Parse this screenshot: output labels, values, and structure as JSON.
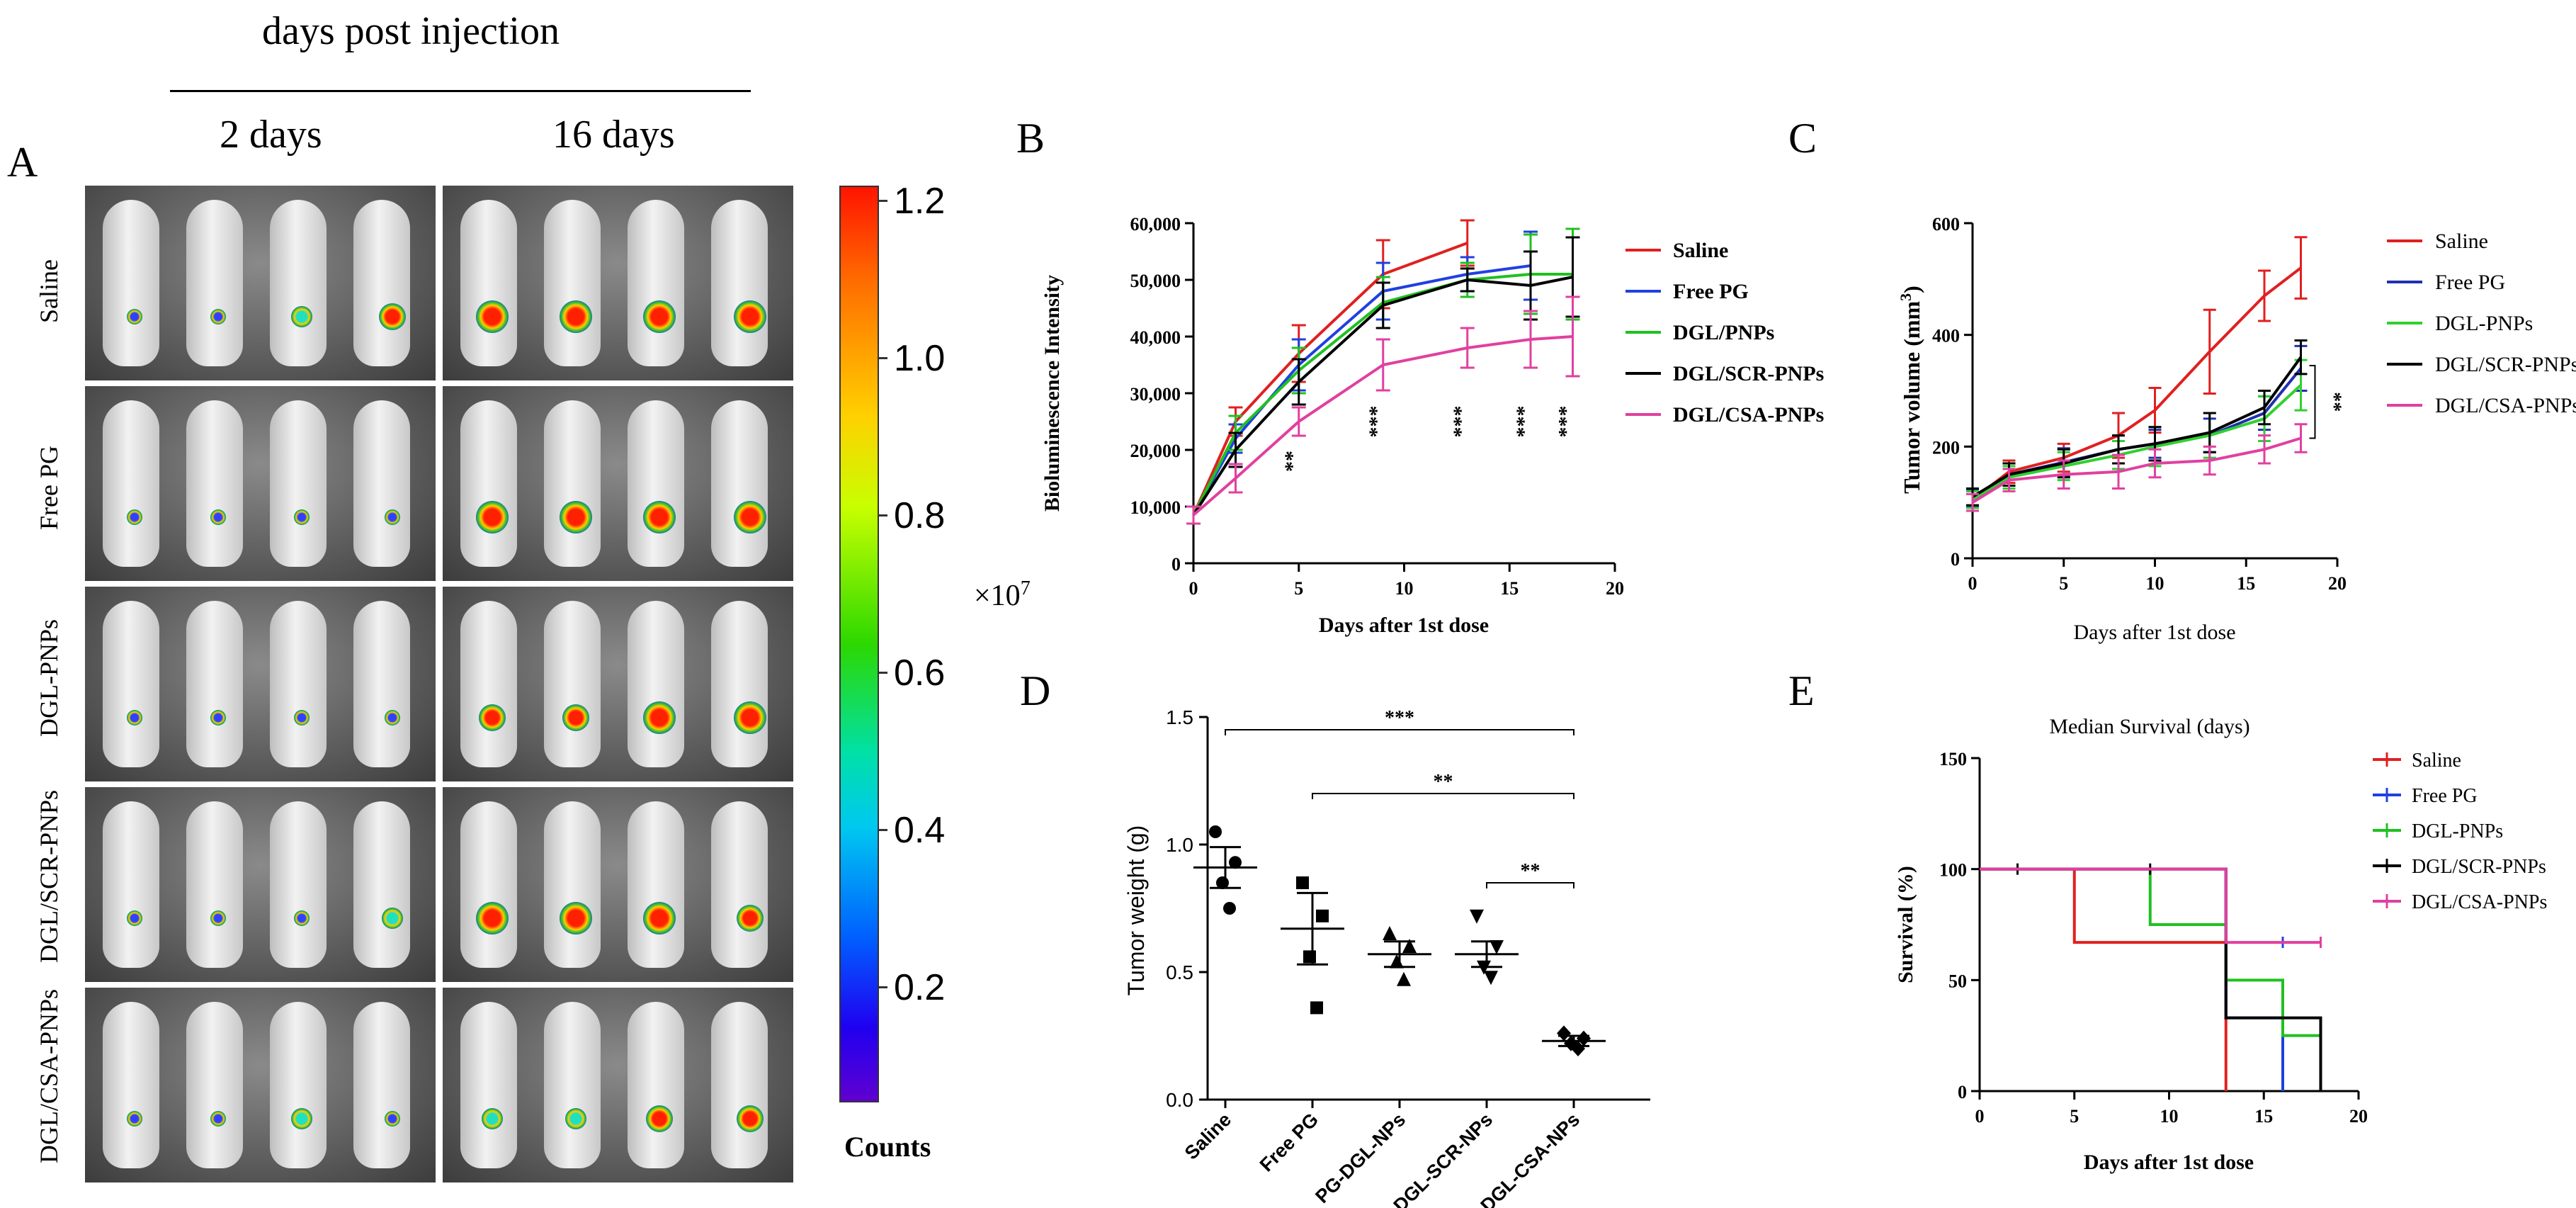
{
  "panel_a": {
    "header": "days post injection",
    "col_labels": [
      "2 days",
      "16 days"
    ],
    "panel_label": "A",
    "row_labels": [
      "Saline",
      "Free PG",
      "DGL-PNPs",
      "DGL/SCR-PNPs",
      "DGL/CSA-PNPs"
    ],
    "colorbar": {
      "ticks": [
        "1.2",
        "1.0",
        "0.8",
        "0.6",
        "0.4",
        "0.2"
      ],
      "multiplier": "×10",
      "multiplier_exp": "7",
      "label": "Counts"
    }
  },
  "chart_data": [
    {
      "id": "B",
      "type": "line",
      "panel_label": "B",
      "xlabel": "Days after 1st dose",
      "ylabel": "Bioluminescence Intensity",
      "xlim": [
        0,
        20
      ],
      "ylim": [
        0,
        60000
      ],
      "xticks": [
        "0",
        "5",
        "10",
        "15",
        "20"
      ],
      "yticks": [
        "0",
        "10,000",
        "20,000",
        "30,000",
        "40,000",
        "50,000",
        "60,000"
      ],
      "series": [
        {
          "name": "Saline",
          "color": "#e02020",
          "x": [
            0,
            2,
            5,
            9,
            13
          ],
          "y": [
            8500,
            25000,
            37000,
            51000,
            56500
          ],
          "err": [
            1500,
            2500,
            5000,
            6000,
            4000
          ]
        },
        {
          "name": "Free PG",
          "color": "#2040e0",
          "x": [
            0,
            2,
            5,
            9,
            13,
            16
          ],
          "y": [
            8500,
            22000,
            35000,
            48000,
            51000,
            52500
          ],
          "err": [
            1500,
            2500,
            4500,
            5000,
            3000,
            6000
          ]
        },
        {
          "name": "DGL/PNPs",
          "color": "#20c020",
          "x": [
            0,
            2,
            5,
            9,
            13,
            16,
            18
          ],
          "y": [
            8500,
            23000,
            34000,
            46000,
            50000,
            51000,
            51000
          ],
          "err": [
            1500,
            3000,
            4000,
            4500,
            3000,
            7000,
            8000
          ]
        },
        {
          "name": "DGL/SCR-PNPs",
          "color": "#000000",
          "x": [
            0,
            2,
            5,
            9,
            13,
            16,
            18
          ],
          "y": [
            8500,
            20000,
            32000,
            45500,
            50000,
            49000,
            50500
          ],
          "err": [
            1500,
            3000,
            4000,
            4000,
            2000,
            6000,
            7000
          ]
        },
        {
          "name": "DGL/CSA-PNPs",
          "color": "#e040a0",
          "x": [
            0,
            2,
            5,
            9,
            13,
            16,
            18
          ],
          "y": [
            8500,
            15000,
            25000,
            35000,
            38000,
            39500,
            40000
          ],
          "err": [
            1500,
            2500,
            2500,
            4500,
            3500,
            5000,
            7000
          ]
        }
      ],
      "annotations": [
        {
          "x": 5,
          "y": 18000,
          "text": "**"
        },
        {
          "x": 9,
          "y": 25000,
          "text": "***"
        },
        {
          "x": 13,
          "y": 25000,
          "text": "***"
        },
        {
          "x": 16,
          "y": 25000,
          "text": "***"
        },
        {
          "x": 18,
          "y": 25000,
          "text": "***"
        }
      ]
    },
    {
      "id": "C",
      "type": "line",
      "panel_label": "C",
      "xlabel": "Days after 1st dose",
      "ylabel": "Tumor volume (mm",
      "ylabel_sup": "3",
      "ylabel_end": ")",
      "xlim": [
        0,
        20
      ],
      "ylim": [
        0,
        600
      ],
      "xticks": [
        "0",
        "5",
        "10",
        "15",
        "20"
      ],
      "yticks": [
        "0",
        "200",
        "400",
        "600"
      ],
      "series": [
        {
          "name": "Saline",
          "color": "#e02020",
          "x": [
            0,
            2,
            5,
            8,
            10,
            13,
            16,
            18
          ],
          "y": [
            105,
            155,
            180,
            220,
            265,
            370,
            470,
            520
          ],
          "err": [
            15,
            20,
            25,
            40,
            40,
            75,
            45,
            55
          ]
        },
        {
          "name": "Free PG",
          "color": "#2030b0",
          "x": [
            0,
            2,
            5,
            8,
            10,
            13,
            16,
            18
          ],
          "y": [
            108,
            150,
            172,
            195,
            205,
            220,
            260,
            340
          ],
          "err": [
            15,
            20,
            25,
            25,
            25,
            30,
            30,
            40
          ]
        },
        {
          "name": "DGL-PNPs",
          "color": "#30d030",
          "x": [
            0,
            2,
            5,
            8,
            10,
            13,
            16,
            18
          ],
          "y": [
            105,
            145,
            165,
            185,
            200,
            220,
            250,
            310
          ],
          "err": [
            15,
            20,
            25,
            25,
            35,
            40,
            40,
            45
          ]
        },
        {
          "name": "DGL/SCR-PNPs",
          "color": "#000000",
          "x": [
            0,
            2,
            5,
            8,
            10,
            13,
            16,
            18
          ],
          "y": [
            110,
            150,
            170,
            195,
            205,
            225,
            270,
            360
          ],
          "err": [
            15,
            20,
            25,
            25,
            30,
            35,
            30,
            30
          ]
        },
        {
          "name": "DGL/CSA-PNPs",
          "color": "#e040a0",
          "x": [
            0,
            2,
            5,
            8,
            10,
            13,
            16,
            18
          ],
          "y": [
            100,
            140,
            150,
            155,
            170,
            175,
            195,
            215
          ],
          "err": [
            15,
            20,
            25,
            30,
            25,
            25,
            25,
            25
          ]
        }
      ],
      "annotations": [
        {
          "text": "**"
        }
      ]
    },
    {
      "id": "D",
      "type": "scatter",
      "panel_label": "D",
      "ylabel": "Tumor weight (g)",
      "ylim": [
        0,
        1.5
      ],
      "yticks": [
        "0.0",
        "0.5",
        "1.0",
        "1.5"
      ],
      "categories": [
        "Saline",
        "Free PG",
        "PG-DGL-NPs",
        "PG-DGL-SCR-NPs",
        "PG-DGL-CSA-NPs"
      ],
      "markers": [
        "circle",
        "square",
        "triangle-up",
        "triangle-down",
        "diamond"
      ],
      "points": [
        [
          1.05,
          0.93,
          0.85,
          0.75
        ],
        [
          0.85,
          0.72,
          0.56,
          0.36
        ],
        [
          0.65,
          0.6,
          0.54,
          0.47
        ],
        [
          0.72,
          0.6,
          0.52,
          0.48
        ],
        [
          0.26,
          0.24,
          0.22,
          0.2
        ]
      ],
      "mean": [
        0.91,
        0.67,
        0.57,
        0.57,
        0.23
      ],
      "sem": [
        0.08,
        0.14,
        0.05,
        0.05,
        0.02
      ],
      "sig": [
        {
          "from": 0,
          "to": 4,
          "y": 1.45,
          "text": "***"
        },
        {
          "from": 1,
          "to": 4,
          "y": 1.2,
          "text": "**"
        },
        {
          "from": 3,
          "to": 4,
          "y": 0.85,
          "text": "**"
        }
      ]
    },
    {
      "id": "E",
      "type": "line",
      "panel_label": "E",
      "title": "Median Survival (days)",
      "xlabel": "Days after 1st dose",
      "ylabel": "Survival (%)",
      "xlim": [
        0,
        20
      ],
      "ylim": [
        0,
        150
      ],
      "xticks": [
        "0",
        "5",
        "10",
        "15",
        "20"
      ],
      "yticks": [
        "0",
        "50",
        "100",
        "150"
      ],
      "series": [
        {
          "name": "Saline",
          "color": "#e02020",
          "steps": [
            [
              0,
              100
            ],
            [
              5,
              100
            ],
            [
              5,
              67
            ],
            [
              13,
              67
            ],
            [
              13,
              0
            ]
          ],
          "censor": []
        },
        {
          "name": "Free PG",
          "color": "#2040e0",
          "steps": [
            [
              0,
              100
            ],
            [
              13,
              100
            ],
            [
              13,
              33
            ],
            [
              16,
              33
            ],
            [
              16,
              0
            ]
          ],
          "censor": [
            [
              16,
              67
            ]
          ]
        },
        {
          "name": "DGL-PNPs",
          "color": "#20c020",
          "steps": [
            [
              0,
              100
            ],
            [
              9,
              100
            ],
            [
              9,
              75
            ],
            [
              13,
              75
            ],
            [
              13,
              50
            ],
            [
              16,
              50
            ],
            [
              16,
              25
            ],
            [
              18,
              25
            ],
            [
              18,
              0
            ]
          ],
          "censor": []
        },
        {
          "name": "DGL/SCR-PNPs",
          "color": "#000000",
          "steps": [
            [
              0,
              100
            ],
            [
              13,
              100
            ],
            [
              13,
              33
            ],
            [
              18,
              33
            ],
            [
              18,
              0
            ]
          ],
          "censor": [
            [
              2,
              100
            ],
            [
              9,
              100
            ]
          ]
        },
        {
          "name": "DGL/CSA-PNPs",
          "color": "#e040a0",
          "steps": [
            [
              0,
              100
            ],
            [
              13,
              100
            ],
            [
              13,
              67
            ],
            [
              18,
              67
            ]
          ],
          "censor": [
            [
              18,
              67
            ]
          ]
        }
      ]
    }
  ]
}
